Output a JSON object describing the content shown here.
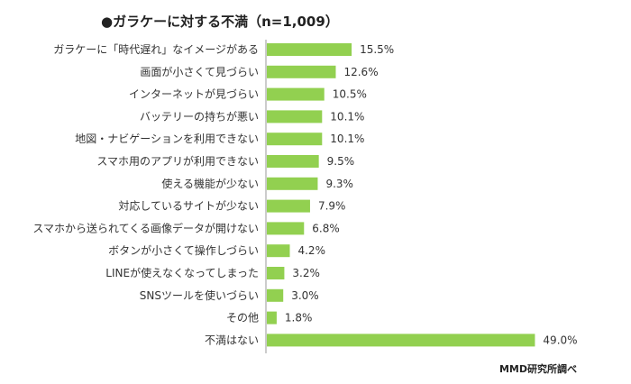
{
  "chart_data": {
    "type": "bar",
    "orientation": "horizontal",
    "title": "●ガラケーに対する不満（n=1,009）",
    "source": "MMD研究所調べ",
    "bar_color": "#92d050",
    "axis_color": "#999999",
    "xlim": [
      0,
      50
    ],
    "categories": [
      "ガラケーに「時代遅れ」なイメージがある",
      "画面が小さくて見づらい",
      "インターネットが見づらい",
      "バッテリーの持ちが悪い",
      "地図・ナビゲーションを利用できない",
      "スマホ用のアプリが利用できない",
      "使える機能が少ない",
      "対応しているサイトが少ない",
      "スマホから送られてくる画像データが開けない",
      "ボタンが小さくて操作しづらい",
      "LINEが使えなくなってしまった",
      "SNSツールを使いづらい",
      "その他",
      "不満はない"
    ],
    "values": [
      15.5,
      12.6,
      10.5,
      10.1,
      10.1,
      9.5,
      9.3,
      7.9,
      6.8,
      4.2,
      3.2,
      3.0,
      1.8,
      49.0
    ],
    "value_labels": [
      "15.5%",
      "12.6%",
      "10.5%",
      "10.1%",
      "10.1%",
      "9.5%",
      "9.3%",
      "7.9%",
      "6.8%",
      "4.2%",
      "3.2%",
      "3.0%",
      "1.8%",
      "49.0%"
    ]
  }
}
